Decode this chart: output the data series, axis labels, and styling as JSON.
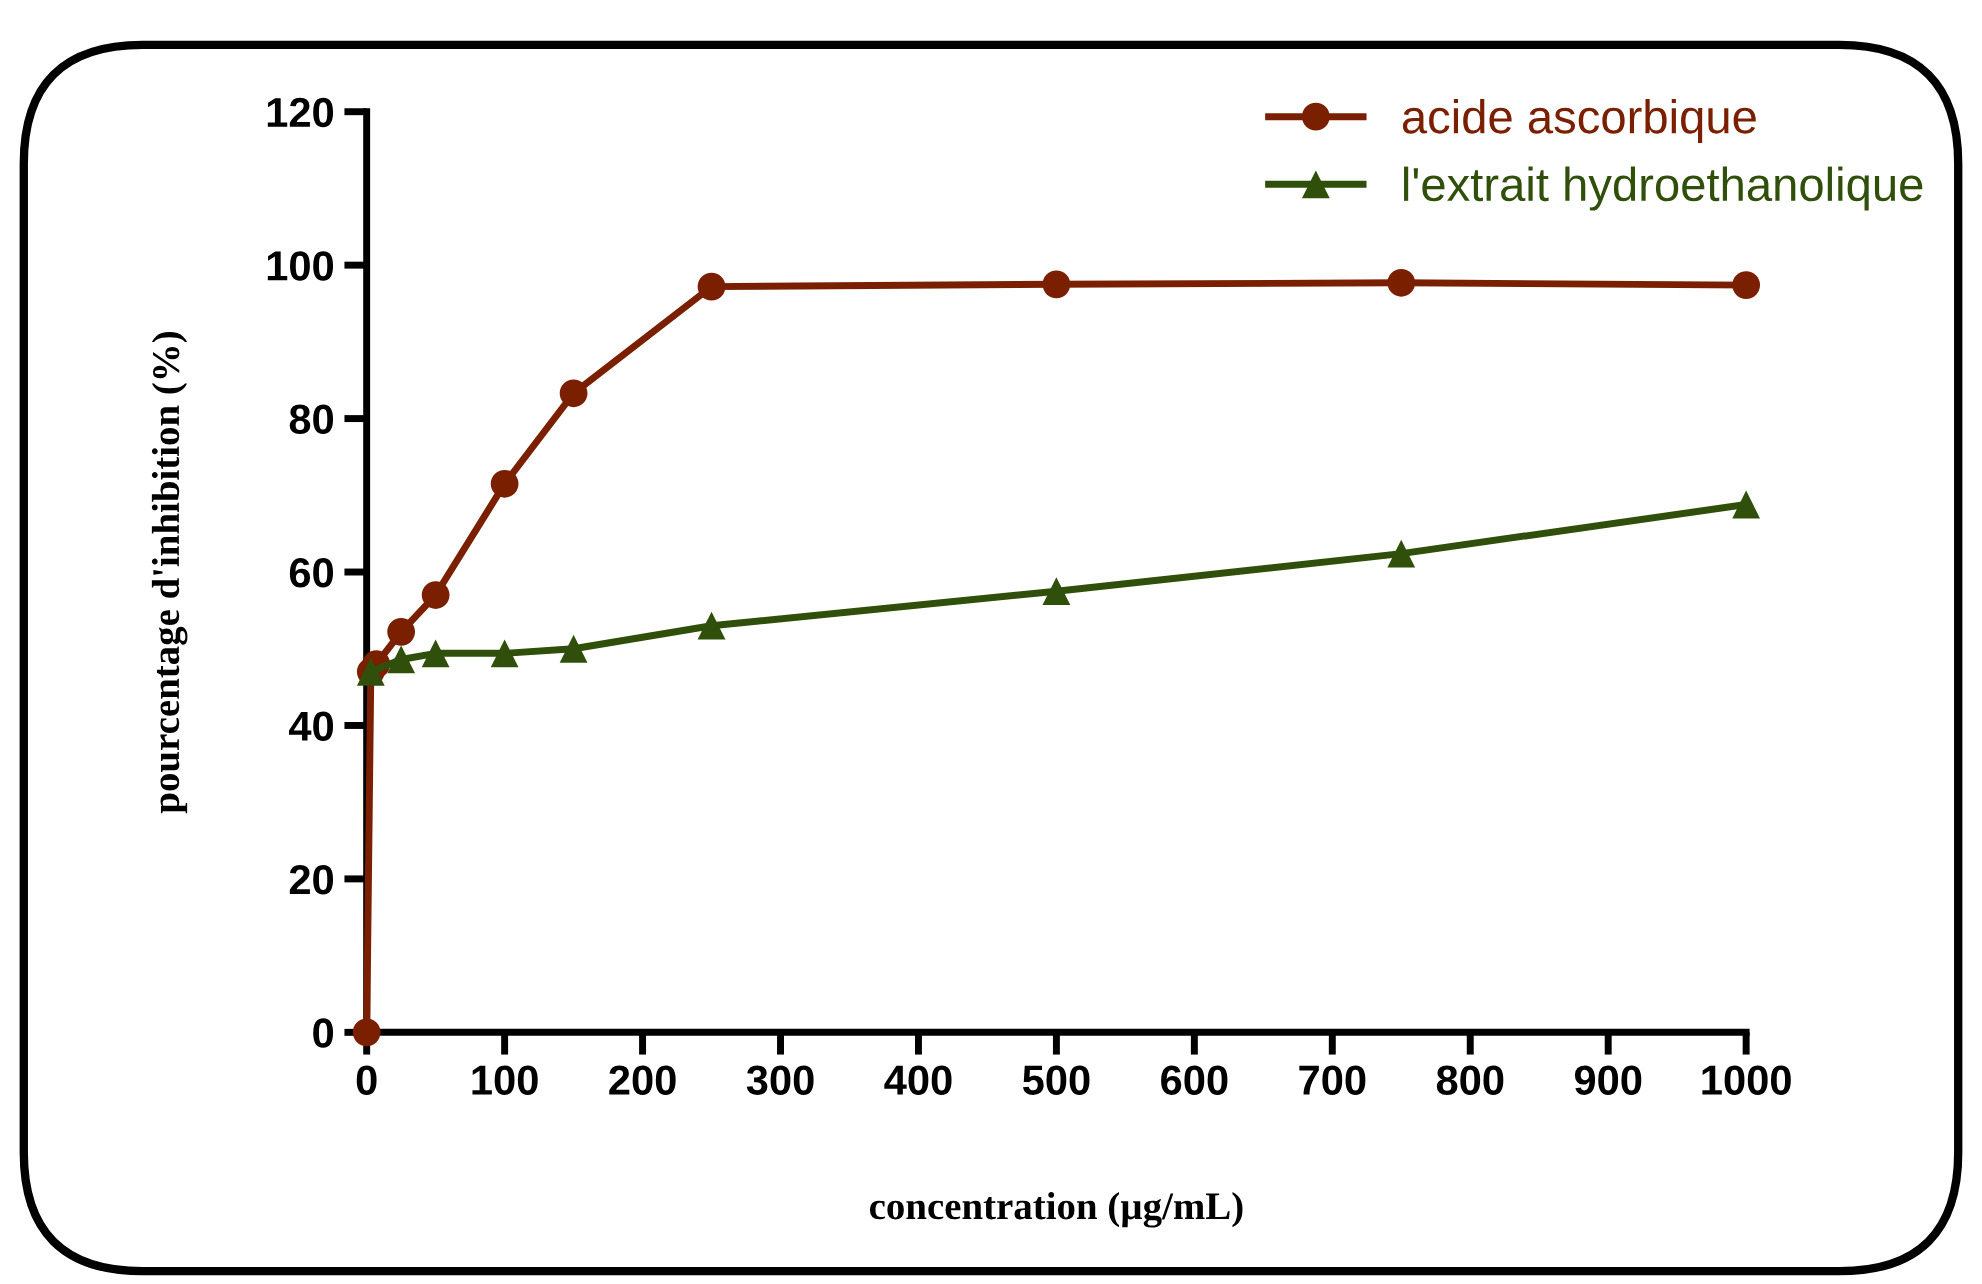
{
  "chart_data": {
    "type": "line",
    "xlabel": "concentration (µg/mL)",
    "ylabel": "pourcentage d'inhibition (%)",
    "xlim": [
      0,
      1000
    ],
    "ylim": [
      0,
      120
    ],
    "xticks": [
      0,
      100,
      200,
      300,
      400,
      500,
      600,
      700,
      800,
      900,
      1000
    ],
    "yticks": [
      0,
      20,
      40,
      60,
      80,
      100,
      120
    ],
    "grid": false,
    "legend": "top right",
    "line_style": "solid",
    "series": [
      {
        "name": "acide ascorbique",
        "color": "#7a2000",
        "marker": "circle",
        "x": [
          0,
          3,
          7,
          25,
          50,
          100,
          150,
          250,
          500,
          750,
          1000
        ],
        "values": [
          0,
          47,
          48,
          52.2,
          57,
          71.5,
          83.3,
          97.2,
          97.5,
          97.7,
          97.4
        ]
      },
      {
        "name": "l'extrait hydroethanolique",
        "color": "#2f4f0a",
        "marker": "triangle",
        "x": [
          3,
          25,
          50,
          100,
          150,
          250,
          500,
          750,
          1000
        ],
        "values": [
          47,
          48.6,
          49.4,
          49.4,
          50,
          53,
          57.5,
          62.4,
          68.8
        ]
      }
    ]
  }
}
